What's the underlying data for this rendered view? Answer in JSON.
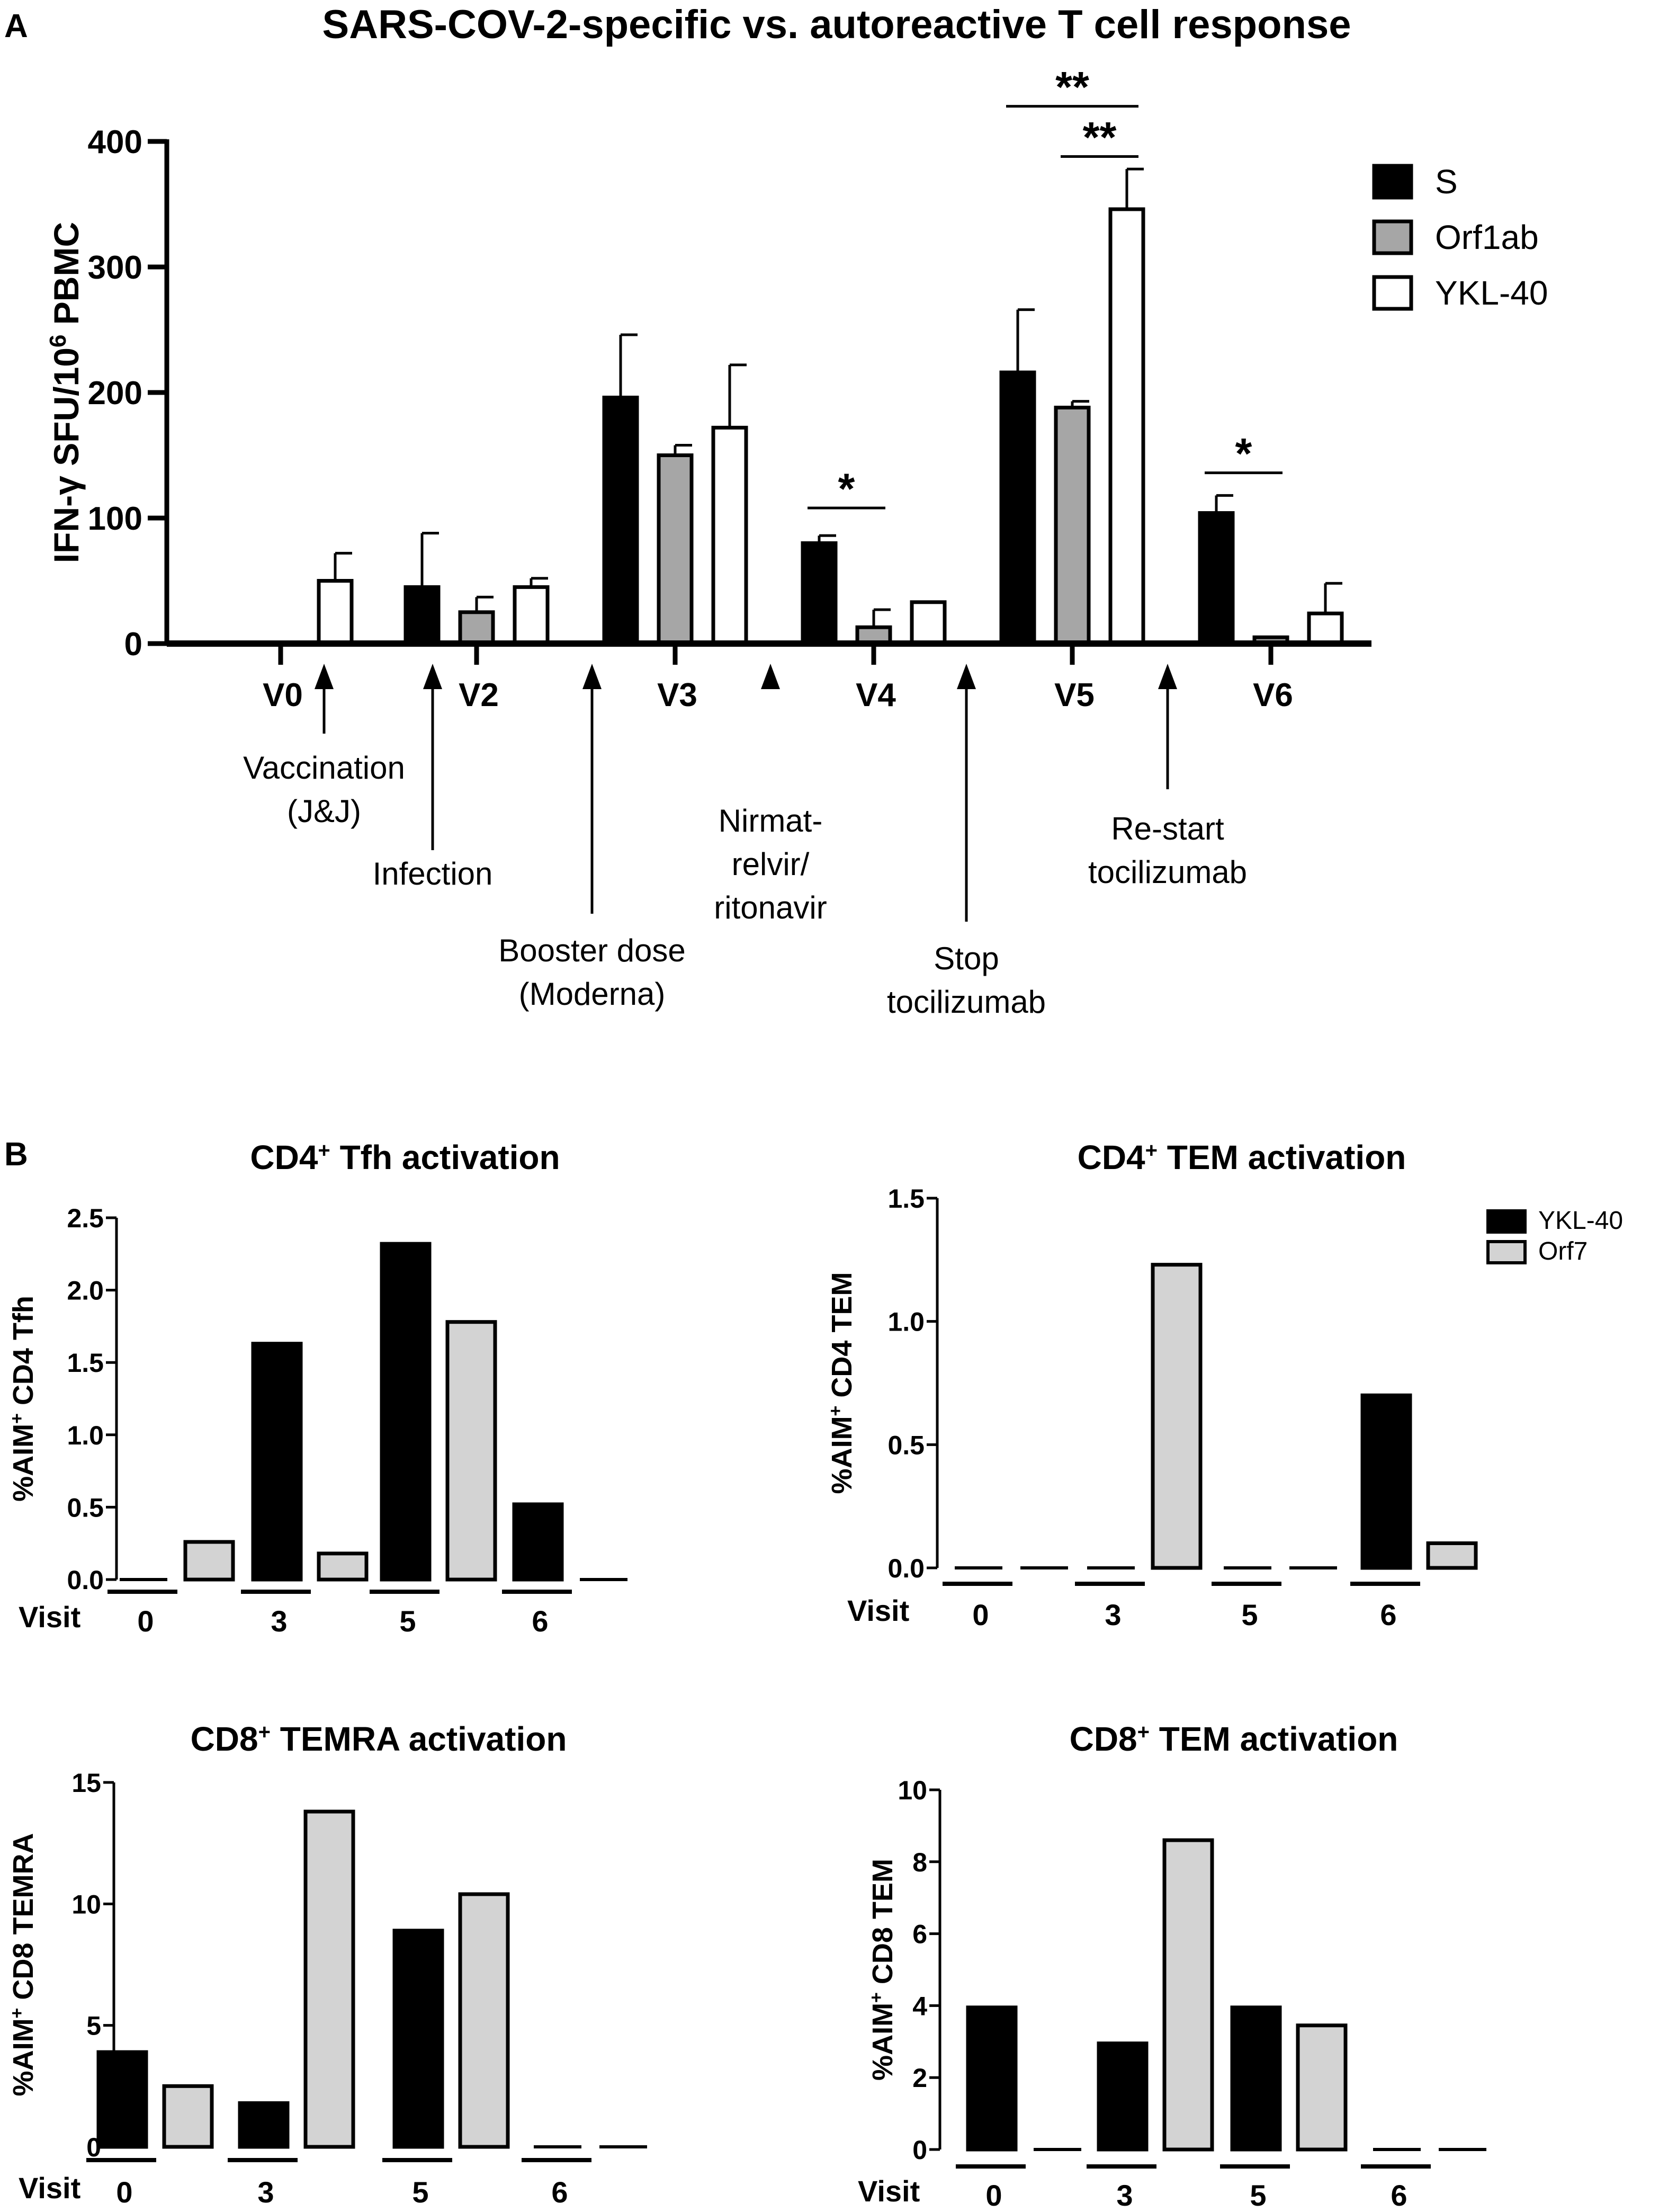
{
  "panel_a": {
    "letter": "A",
    "chart_data": {
      "type": "bar",
      "title": "SARS-COV-2-specific vs. autoreactive T cell response",
      "ylabel": "IFN-γ SFU/10⁶ PBMC",
      "ylabel_parts": [
        "IFN-",
        "γ",
        " SFU/10",
        "6",
        " PBMC"
      ],
      "ylim": [
        0,
        400
      ],
      "yticks": [
        "0",
        "100",
        "200",
        "300",
        "400"
      ],
      "categories": [
        "V0",
        "V2",
        "V3",
        "V4",
        "V5",
        "V6"
      ],
      "series": [
        {
          "name": "S",
          "color": "#000000",
          "values": [
            0,
            45,
            196,
            80,
            216,
            104
          ],
          "errors": [
            0,
            43,
            50,
            6,
            50,
            14
          ]
        },
        {
          "name": "Orf1ab",
          "color": "#a6a6a6",
          "values": [
            0,
            25,
            150,
            13,
            188,
            5
          ],
          "errors": [
            0,
            12,
            8,
            14,
            5,
            0
          ]
        },
        {
          "name": "YKL-40",
          "color": "#ffffff",
          "values": [
            50,
            45,
            172,
            33,
            346,
            24
          ],
          "errors": [
            22,
            7,
            50,
            0,
            32,
            24
          ]
        }
      ],
      "significance": [
        {
          "label": "*",
          "visit": "V4",
          "from": "S",
          "to": "Orf1ab",
          "y": 108
        },
        {
          "label": "**",
          "visit": "V5",
          "from": "S",
          "to": "YKL-40",
          "y": 428
        },
        {
          "label": "**",
          "visit": "V5",
          "from": "Orf1ab",
          "to": "YKL-40",
          "y": 388
        },
        {
          "label": "*",
          "visit": "V6",
          "from": "S",
          "to": "Orf1ab",
          "y": 136
        }
      ],
      "events": [
        {
          "lines": [
            "Vaccination",
            "(J&J)"
          ],
          "name": "vaccination"
        },
        {
          "lines": [
            "Infection"
          ],
          "name": "infection"
        },
        {
          "lines": [
            "Booster dose",
            "(Moderna)"
          ],
          "name": "booster-dose"
        },
        {
          "lines": [
            "Nirmat-",
            "relvir/",
            "ritonavir"
          ],
          "name": "nirmatrelvir-ritonavir"
        },
        {
          "lines": [
            "Stop",
            "tocilizumab"
          ],
          "name": "stop-tocilizumab"
        },
        {
          "lines": [
            "Re-start",
            "tocilizumab"
          ],
          "name": "restart-tocilizumab"
        }
      ]
    }
  },
  "panel_b": {
    "letter": "B",
    "legend": [
      {
        "name": "YKL-40",
        "color": "#000000"
      },
      {
        "name": "Orf7",
        "color": "#d3d3d3"
      }
    ],
    "chart_data": [
      {
        "type": "bar",
        "title": "CD4⁺ Tfh activation",
        "title_parts": [
          "CD4",
          "+",
          " Tfh activation"
        ],
        "ylabel": "%AIM⁺ CD4 Tfh",
        "ylabel_parts": [
          "%AIM",
          "+",
          " CD4 Tfh"
        ],
        "xlabel": "Visit",
        "categories": [
          "0",
          "3",
          "5",
          "6"
        ],
        "ylim": [
          0,
          2.5
        ],
        "yticks": [
          "0.0",
          "0.5",
          "1.0",
          "1.5",
          "2.0",
          "2.5"
        ],
        "series": [
          {
            "name": "YKL-40",
            "values": [
              0,
              1.63,
              2.32,
              0.52
            ]
          },
          {
            "name": "Orf7",
            "values": [
              0.26,
              0.18,
              1.78,
              0
            ]
          }
        ]
      },
      {
        "type": "bar",
        "title": "CD4⁺ TEM activation",
        "title_parts": [
          "CD4",
          "+",
          " TEM activation"
        ],
        "ylabel": "%AIM⁺ CD4 TEM",
        "ylabel_parts": [
          "%AIM",
          "+",
          " CD4 TEM"
        ],
        "xlabel": "Visit",
        "categories": [
          "0",
          "3",
          "5",
          "6"
        ],
        "ylim": [
          0,
          1.5
        ],
        "yticks": [
          "0.0",
          "0.5",
          "1.0",
          "1.5"
        ],
        "series": [
          {
            "name": "YKL-40",
            "values": [
              0,
              0,
              0,
              0.7
            ]
          },
          {
            "name": "Orf7",
            "values": [
              0,
              1.23,
              0,
              0.1
            ]
          }
        ]
      },
      {
        "type": "bar",
        "title": "CD8⁺ TEMRA activation",
        "title_parts": [
          "CD8",
          "+",
          " TEMRA activation"
        ],
        "ylabel": "%AIM⁺ CD8 TEMRA",
        "ylabel_parts": [
          "%AIM",
          "+",
          " CD8 TEMRA"
        ],
        "xlabel": "Visit",
        "categories": [
          "0",
          "3",
          "5",
          "6"
        ],
        "ylim": [
          0,
          15
        ],
        "yticks": [
          "0",
          "5",
          "10",
          "15"
        ],
        "series": [
          {
            "name": "YKL-40",
            "values": [
              3.9,
              1.8,
              8.9,
              0
            ]
          },
          {
            "name": "Orf7",
            "values": [
              2.5,
              13.8,
              10.4,
              0
            ]
          }
        ]
      },
      {
        "type": "bar",
        "title": "CD8⁺ TEM activation",
        "title_parts": [
          "CD8",
          "+",
          " TEM activation"
        ],
        "ylabel": "%AIM⁺ CD8 TEM",
        "ylabel_parts": [
          "%AIM",
          "+",
          " CD8 TEM"
        ],
        "xlabel": "Visit",
        "categories": [
          "0",
          "3",
          "5",
          "6"
        ],
        "ylim": [
          0,
          10
        ],
        "yticks": [
          "0",
          "2",
          "4",
          "6",
          "8",
          "10"
        ],
        "series": [
          {
            "name": "YKL-40",
            "values": [
              3.95,
              2.95,
              3.95,
              0
            ]
          },
          {
            "name": "Orf7",
            "values": [
              0,
              8.6,
              3.45,
              0
            ]
          }
        ]
      }
    ]
  }
}
